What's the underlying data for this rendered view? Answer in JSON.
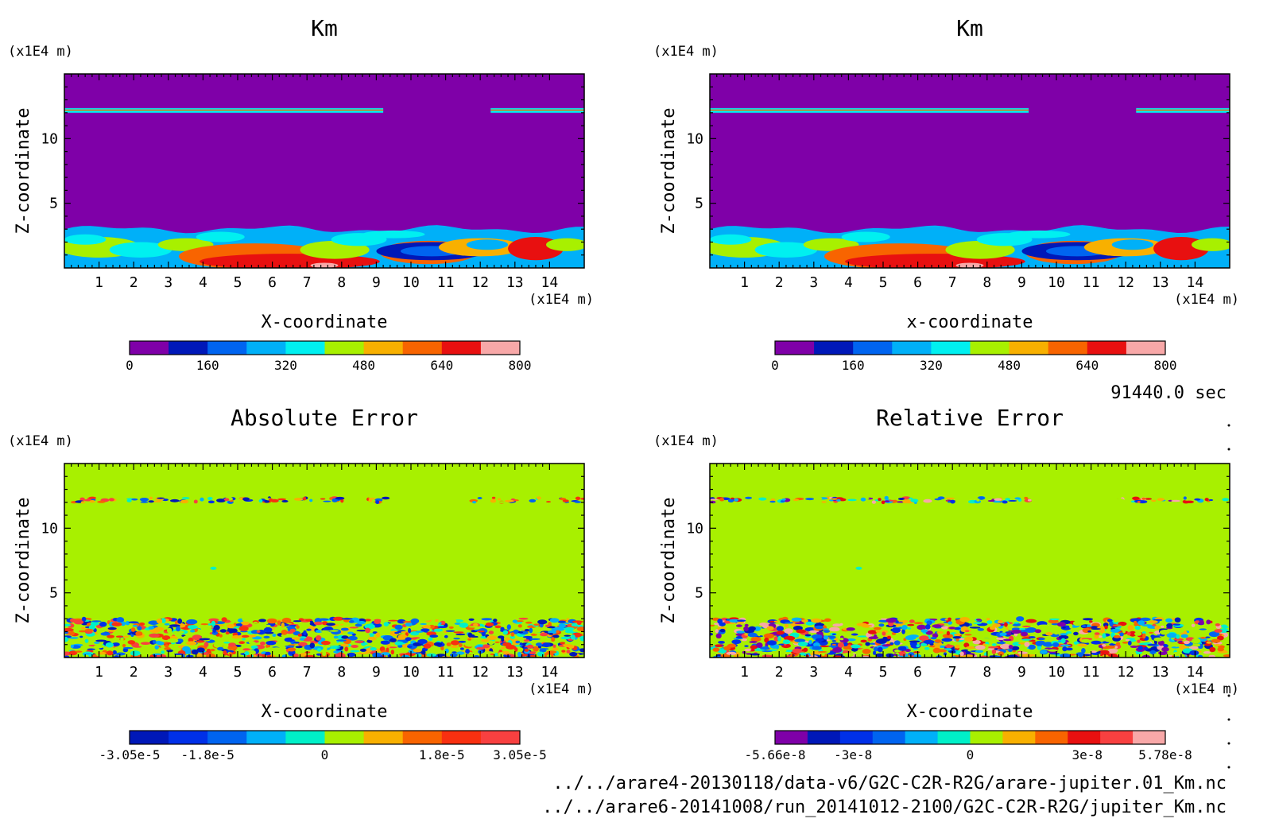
{
  "time_label": "91440.0 sec",
  "files": [
    "../../arare4-20130118/data-v6/G2C-C2R-R2G/arare-jupiter.01_Km.nc",
    "../../arare6-20141008/run_20141012-2100/G2C-C2R-R2G/jupiter_Km.nc"
  ],
  "chart_data": [
    {
      "type": "heatmap",
      "title": "Km",
      "xlabel": "X-coordinate",
      "ylabel": "Z-coordinate",
      "x_unit": "(x1E4 m)",
      "y_unit": "(x1E4 m)",
      "xlim": [
        0,
        15
      ],
      "ylim": [
        0,
        15
      ],
      "xticks": [
        "1",
        "2",
        "3",
        "4",
        "5",
        "6",
        "7",
        "8",
        "9",
        "10",
        "11",
        "12",
        "13",
        "14"
      ],
      "yticks": [
        "5",
        "10"
      ],
      "field": "km",
      "colorbar": {
        "labels": [
          "0",
          "160",
          "320",
          "480",
          "640",
          "800"
        ],
        "colors": [
          "#7f00a8",
          "#0018b8",
          "#0064f0",
          "#00b0f8",
          "#00f0f0",
          "#a8f000",
          "#f8b000",
          "#f86400",
          "#e81010",
          "#f8a8a8"
        ]
      }
    },
    {
      "type": "heatmap",
      "title": "Km",
      "xlabel": "x-coordinate",
      "ylabel": "Z-coordinate",
      "x_unit": "(x1E4 m)",
      "y_unit": "(x1E4 m)",
      "xlim": [
        0,
        15
      ],
      "ylim": [
        0,
        15
      ],
      "xticks": [
        "1",
        "2",
        "3",
        "4",
        "5",
        "6",
        "7",
        "8",
        "9",
        "10",
        "11",
        "12",
        "13",
        "14"
      ],
      "yticks": [
        "5",
        "10"
      ],
      "field": "km",
      "colorbar": {
        "labels": [
          "0",
          "160",
          "320",
          "480",
          "640",
          "800"
        ],
        "colors": [
          "#7f00a8",
          "#0018b8",
          "#0064f0",
          "#00b0f8",
          "#00f0f0",
          "#a8f000",
          "#f8b000",
          "#f86400",
          "#e81010",
          "#f8a8a8"
        ]
      }
    },
    {
      "type": "heatmap",
      "title": "Absolute Error",
      "xlabel": "X-coordinate",
      "ylabel": "Z-coordinate",
      "x_unit": "(x1E4 m)",
      "y_unit": "(x1E4 m)",
      "xlim": [
        0,
        15
      ],
      "ylim": [
        0,
        15
      ],
      "xticks": [
        "1",
        "2",
        "3",
        "4",
        "5",
        "6",
        "7",
        "8",
        "9",
        "10",
        "11",
        "12",
        "13",
        "14"
      ],
      "yticks": [
        "5",
        "10"
      ],
      "field": "error",
      "colorbar": {
        "labels": [
          "-3.05e-5",
          "-1.8e-5",
          "0",
          "1.8e-5",
          "3.05e-5"
        ],
        "label_steps": [
          0,
          2,
          5,
          8,
          10
        ],
        "colors": [
          "#0018b8",
          "#0030e8",
          "#0064f0",
          "#00b0f8",
          "#00f0c8",
          "#a8f000",
          "#f8b000",
          "#f86400",
          "#f83010",
          "#f84040"
        ]
      }
    },
    {
      "type": "heatmap",
      "title": "Relative Error",
      "xlabel": "X-coordinate",
      "ylabel": "Z-coordinate",
      "x_unit": "(x1E4 m)",
      "y_unit": "(x1E4 m)",
      "xlim": [
        0,
        15
      ],
      "ylim": [
        0,
        15
      ],
      "xticks": [
        "1",
        "2",
        "3",
        "4",
        "5",
        "6",
        "7",
        "8",
        "9",
        "10",
        "11",
        "12",
        "13",
        "14"
      ],
      "yticks": [
        "5",
        "10"
      ],
      "field": "error",
      "colorbar": {
        "labels": [
          "-5.66e-8",
          "-3e-8",
          "0",
          "3e-8",
          "5.78e-8"
        ],
        "label_steps": [
          0,
          2,
          5,
          8,
          10
        ],
        "colors": [
          "#7f00a8",
          "#0018b8",
          "#0030e8",
          "#0064f0",
          "#00b0f8",
          "#00f0c8",
          "#a8f000",
          "#f8b000",
          "#f86400",
          "#e81010",
          "#f84040",
          "#f8a8a8"
        ]
      }
    }
  ]
}
